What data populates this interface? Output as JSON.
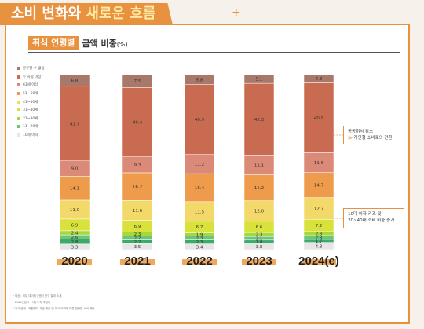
{
  "header": {
    "title_pre": "소비 변화와 ",
    "title_hl": "새로운 흐름",
    "plus": "+"
  },
  "chart_header": {
    "tag": "취식 연령별",
    "title": "금액 비중",
    "unit": "(%)"
  },
  "callouts": {
    "first_line1": "공동취식 감소",
    "first_arrow": "≫",
    "first_line2": "개인형 소비로의 전환",
    "second_line1": "10대 이하 키즈 및",
    "second_line2": "20~40대 소비 비중 증가"
  },
  "notes": [
    "* 제공 : 외부 데이터 / 엔터 연구 결과 소개",
    "* 2024년은 1~9월 누적 추정치",
    "* 취식 연령 : 회원정보 기반 메장 및 취식 이력에 따른 연령별 소비 패턴"
  ],
  "chart_data": {
    "type": "bar",
    "stacked": true,
    "categories": [
      "2020",
      "2021",
      "2022",
      "2023",
      "2024(e)"
    ],
    "ylim": [
      0,
      100
    ],
    "grid": false,
    "legend_position": "left",
    "series": [
      {
        "name": "10세 이하",
        "color": "#e6e6e6",
        "values": [
          3.3,
          3.5,
          3.4,
          3.8,
          4.3
        ]
      },
      {
        "name": "11~20세",
        "color": "#3daa6b",
        "values": [
          2.8,
          2.2,
          2.3,
          1.8,
          1.7
        ]
      },
      {
        "name": "21~30세",
        "color": "#6cc67a",
        "values": [
          2.6,
          2.2,
          2.3,
          2.1,
          2.3
        ]
      },
      {
        "name": "31~40세",
        "color": "#a7d83a",
        "values": [
          2.4,
          2.3,
          1.9,
          2.3,
          2.3
        ]
      },
      {
        "name": "41~50세",
        "color": "#d9e23a",
        "values": [
          6.9,
          6.9,
          6.7,
          6.6,
          7.2
        ]
      },
      {
        "name": "51~60세",
        "color": "#f2d96a",
        "values": [
          11.0,
          11.6,
          11.5,
          12.0,
          12.7
        ]
      },
      {
        "name": "61세 이상",
        "color": "#ee9c4c",
        "values": [
          14.1,
          16.2,
          16.4,
          15.2,
          14.7
        ]
      },
      {
        "name": "두 사람 이상",
        "color": "#dc8a78",
        "values": [
          9.0,
          9.3,
          11.2,
          11.1,
          11.6
        ]
      },
      {
        "name": "",
        "color": "#c96b50",
        "values": [
          43.7,
          40.4,
          40.9,
          42.3,
          40.9
        ]
      },
      {
        "name": "분류할 수 없음",
        "color": "#a8786a",
        "values": [
          6.8,
          7.5,
          5.8,
          5.1,
          4.8
        ]
      }
    ],
    "legend_order": [
      "분류할 수 없음",
      "두 사람 이상",
      "61세 이상",
      "51~60세",
      "41~50세",
      "31~40세",
      "21~30세",
      "11~20세",
      "10세 이하"
    ],
    "legend_colors": [
      "#a8786a",
      "#c96b50",
      "#dc8a78",
      "#ee9c4c",
      "#f2d96a",
      "#d9e23a",
      "#a7d83a",
      "#6cc67a",
      "#e6e6e6"
    ]
  }
}
